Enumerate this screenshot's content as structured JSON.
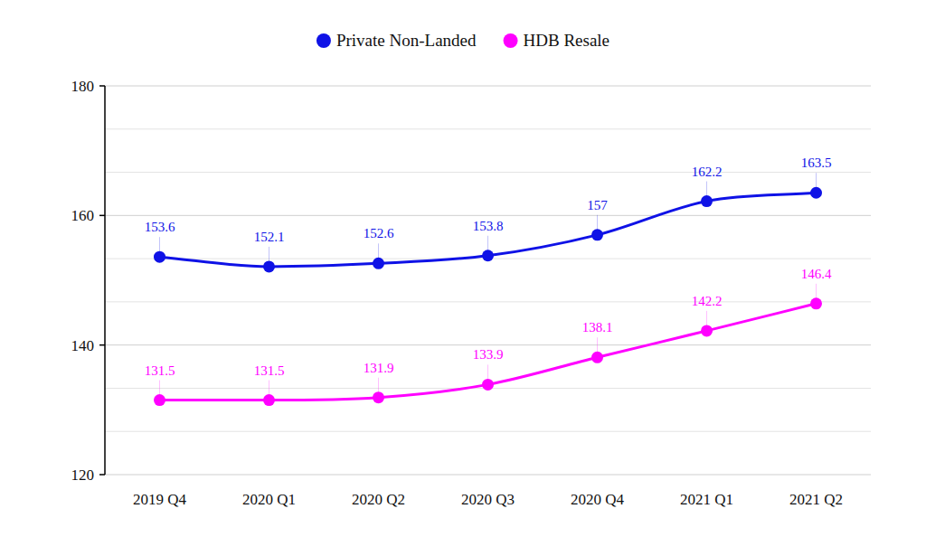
{
  "chart_data": {
    "type": "line",
    "categories": [
      "2019 Q4",
      "2020 Q1",
      "2020 Q2",
      "2020 Q3",
      "2020 Q4",
      "2021 Q1",
      "2021 Q2"
    ],
    "series": [
      {
        "name": "Private Non-Landed",
        "color": "#0f12e6",
        "values": [
          153.6,
          152.1,
          152.6,
          153.8,
          157,
          162.2,
          163.5
        ]
      },
      {
        "name": "HDB Resale",
        "color": "#ff00ff",
        "values": [
          131.5,
          131.5,
          131.9,
          133.9,
          138.1,
          142.2,
          146.4
        ]
      }
    ],
    "ylim": [
      120,
      180
    ],
    "yticks": [
      120,
      140,
      160,
      180
    ],
    "grid": true,
    "legend": "top",
    "data_labels": true,
    "marker": "circle",
    "line_style": "smooth"
  }
}
